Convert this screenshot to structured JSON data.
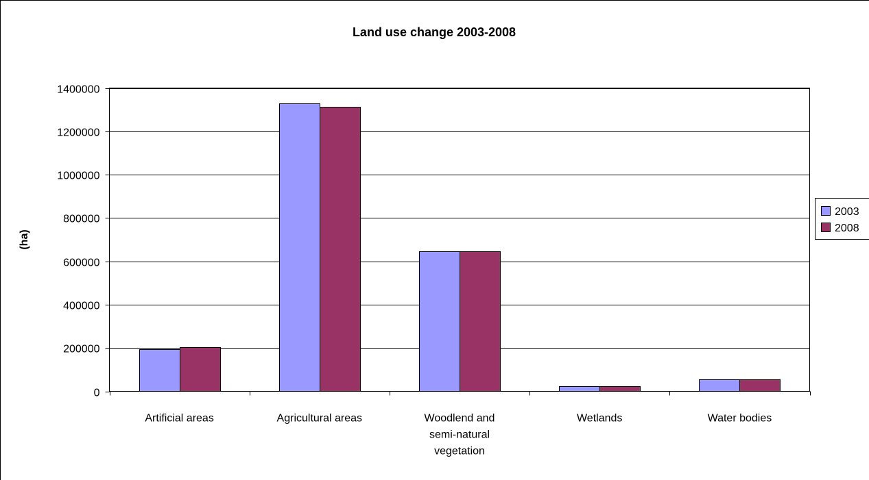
{
  "chart_data": {
    "type": "bar",
    "title": "Land use change 2003-2008",
    "xlabel": "",
    "ylabel": "(ha)",
    "ylim": [
      0,
      1400000
    ],
    "yticks": [
      0,
      200000,
      400000,
      600000,
      800000,
      1000000,
      1200000,
      1400000
    ],
    "grid": true,
    "legend_position": "right",
    "categories": [
      [
        "Artificial areas"
      ],
      [
        "Agricultural areas"
      ],
      [
        "Woodlend and",
        "semi-natural",
        "vegetation"
      ],
      [
        "Wetlands"
      ],
      [
        "Water bodies"
      ]
    ],
    "series": [
      {
        "name": "2003",
        "color": "#9999ff",
        "values": [
          193000,
          1328000,
          645000,
          23000,
          56000
        ]
      },
      {
        "name": "2008",
        "color": "#993366",
        "values": [
          205000,
          1312000,
          645000,
          23000,
          56000
        ]
      }
    ]
  }
}
